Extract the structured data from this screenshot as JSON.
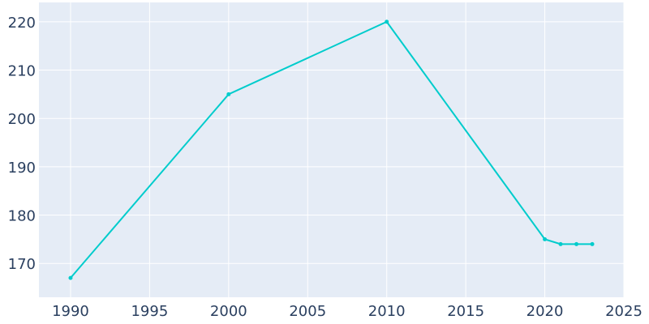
{
  "chart_data": {
    "type": "line",
    "title": "",
    "xlabel": "",
    "ylabel": "",
    "xlim": [
      1988,
      2025
    ],
    "ylim": [
      163,
      224
    ],
    "x_ticks": [
      1990,
      1995,
      2000,
      2005,
      2010,
      2015,
      2020,
      2025
    ],
    "y_ticks": [
      170,
      180,
      190,
      200,
      210,
      220
    ],
    "grid": true,
    "legend": "none",
    "series": [
      {
        "x": [
          1990,
          2000,
          2010,
          2020,
          2021,
          2022,
          2023
        ],
        "y": [
          167,
          205,
          220,
          175,
          174,
          174,
          174
        ]
      }
    ],
    "colors": {
      "line": "#00cccc",
      "plot_background": "#e5ecf6",
      "grid": "#ffffff",
      "text": "#2a3f5f"
    }
  }
}
